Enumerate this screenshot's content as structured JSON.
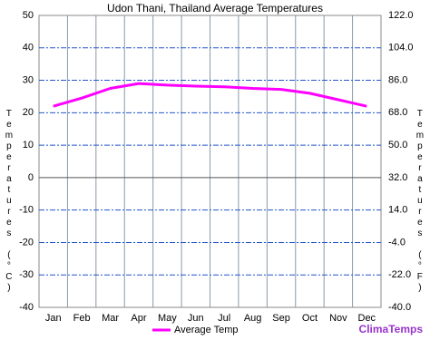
{
  "chart_data": {
    "type": "line",
    "title": "Udon Thani, Thailand Average Temperatures",
    "categories": [
      "Jan",
      "Feb",
      "Mar",
      "Apr",
      "May",
      "Jun",
      "Jul",
      "Aug",
      "Sep",
      "Oct",
      "Nov",
      "Dec"
    ],
    "series": [
      {
        "name": "Average Temp",
        "color": "#ff00ff",
        "values": [
          22,
          24.5,
          27.5,
          29,
          28.5,
          28.2,
          28,
          27.5,
          27.2,
          26,
          24,
          22
        ]
      }
    ],
    "ylim": [
      -40,
      50
    ],
    "yticks": [
      -40,
      -30,
      -20,
      -10,
      0,
      10,
      20,
      30,
      40,
      50
    ],
    "y2lim": [
      -40,
      122
    ],
    "y2ticks": [
      {
        "value": -40,
        "label": "-40.0"
      },
      {
        "value": -22,
        "label": "-22.0"
      },
      {
        "value": -4,
        "label": "-4.0"
      },
      {
        "value": 14,
        "label": "14.0"
      },
      {
        "value": 32,
        "label": "32.0"
      },
      {
        "value": 50,
        "label": "50.0"
      },
      {
        "value": 68,
        "label": "68.0"
      },
      {
        "value": 86,
        "label": "86.0"
      },
      {
        "value": 104,
        "label": "104.0"
      },
      {
        "value": 122,
        "label": "122.0"
      }
    ],
    "ylabel": "Temperatures (°C)",
    "y2label": "Temperatures (°F)",
    "grid": true,
    "legend": "bottom",
    "watermark": "ClimaTemps"
  }
}
